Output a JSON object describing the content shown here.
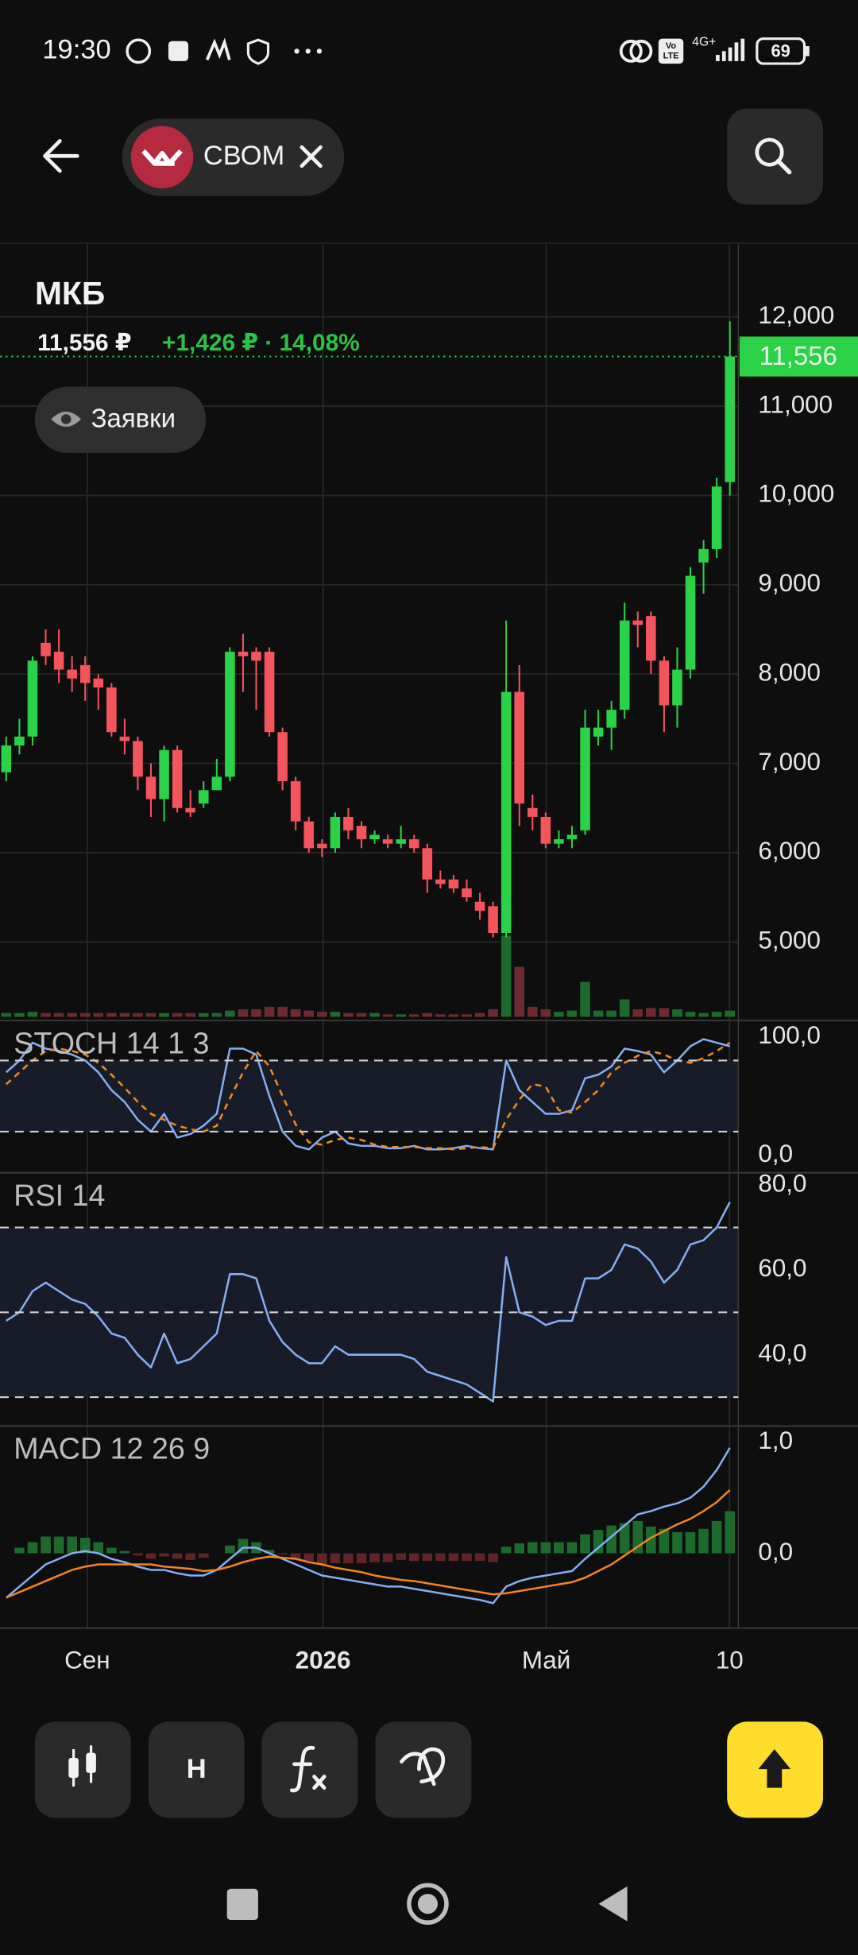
{
  "status_bar": {
    "time": "19:30",
    "volte_top": "Vo",
    "volte_bottom": "LTE",
    "network": "4G+",
    "battery": "69"
  },
  "header": {
    "ticker_chip": "СВОМ"
  },
  "toolbar": {
    "chart_type_text": "H"
  },
  "chart_data": [
    {
      "type": "candlestick",
      "title": "МКБ",
      "price": "11,556 ₽",
      "change": "+1,426 ₽ · 14,08%",
      "orders_button": "Заявки",
      "open": [
        6900,
        7200,
        7300,
        8350,
        8250,
        8050,
        8100,
        7950,
        7850,
        7300,
        7250,
        6850,
        6600,
        7150,
        6500,
        6550,
        6700,
        6850,
        8250,
        8250,
        8250,
        7350,
        6800,
        6350,
        6100,
        6050,
        6400,
        6300,
        6150,
        6150,
        6100,
        6150,
        6050,
        5700,
        5700,
        5600,
        5450,
        5400,
        5100,
        7800,
        6500,
        6400,
        6100,
        6150,
        6250,
        7300,
        7400,
        7600,
        8600,
        8650,
        8150,
        7650,
        8050,
        9250,
        9400,
        10150
      ],
      "high": [
        7300,
        7500,
        8200,
        8500,
        8500,
        8200,
        8200,
        8000,
        7900,
        7500,
        7300,
        7000,
        7200,
        7200,
        6700,
        6800,
        7050,
        8300,
        8450,
        8300,
        8300,
        7400,
        6850,
        6400,
        6150,
        6450,
        6500,
        6350,
        6250,
        6200,
        6300,
        6200,
        6100,
        5800,
        5750,
        5700,
        5550,
        5450,
        8600,
        8100,
        6650,
        6450,
        6250,
        6300,
        7600,
        7600,
        7700,
        8800,
        8700,
        8700,
        8200,
        8300,
        9200,
        9500,
        10200,
        11950
      ],
      "low": [
        6800,
        7100,
        7200,
        8100,
        7900,
        7800,
        7700,
        7600,
        7300,
        7100,
        6700,
        6400,
        6350,
        6450,
        6400,
        6500,
        6700,
        6800,
        7800,
        7600,
        7300,
        6700,
        6250,
        6000,
        5950,
        6000,
        6150,
        6050,
        6100,
        6050,
        6050,
        6000,
        5550,
        5600,
        5550,
        5450,
        5250,
        5050,
        5050,
        6300,
        6250,
        6050,
        6050,
        6050,
        6200,
        7200,
        7150,
        7500,
        8300,
        8000,
        7350,
        7400,
        7950,
        8900,
        9300,
        10000
      ],
      "close": [
        7200,
        7300,
        8150,
        8200,
        8050,
        7950,
        7900,
        7850,
        7350,
        7250,
        6850,
        6600,
        7150,
        6500,
        6450,
        6700,
        6850,
        8250,
        8200,
        8150,
        7350,
        6800,
        6350,
        6050,
        6050,
        6400,
        6250,
        6150,
        6200,
        6100,
        6150,
        6050,
        5700,
        5650,
        5600,
        5500,
        5350,
        5100,
        7800,
        6550,
        6400,
        6100,
        6150,
        6200,
        7400,
        7400,
        7600,
        8600,
        8550,
        8150,
        7650,
        8050,
        9100,
        9400,
        10100,
        11556
      ],
      "volume": [
        3,
        3,
        4,
        3,
        3,
        3,
        3,
        3,
        3,
        3,
        3,
        3,
        3,
        3,
        3,
        3,
        3,
        5,
        6,
        6,
        8,
        8,
        6,
        5,
        4,
        4,
        3,
        3,
        3,
        2,
        2,
        2,
        3,
        2,
        2,
        2,
        3,
        6,
        65,
        40,
        8,
        6,
        4,
        5,
        28,
        5,
        5,
        14,
        6,
        7,
        7,
        6,
        4,
        3,
        4,
        5
      ],
      "up_color": "#2bd146",
      "down_color": "#f4545c",
      "volume_up_color": "#1d6b2c",
      "volume_down_color": "#6e2a30",
      "last_price": {
        "value": 11556,
        "label": "11,556"
      },
      "ylim": [
        4120,
        12810
      ],
      "yticks": [
        {
          "value": 12000,
          "label": "12,000"
        },
        {
          "value": 11000,
          "label": "11,000"
        },
        {
          "value": 10000,
          "label": "10,000"
        },
        {
          "value": 9000,
          "label": "9,000"
        },
        {
          "value": 8000,
          "label": "8,000"
        },
        {
          "value": 7000,
          "label": "7,000"
        },
        {
          "value": 6000,
          "label": "6,000"
        },
        {
          "value": 5000,
          "label": "5,000"
        }
      ],
      "x_labels": [
        "Сен",
        "2026",
        "Май",
        "10"
      ],
      "grid": true
    },
    {
      "type": "line",
      "title": "STOCH 14 1 3",
      "series": [
        {
          "color": "#86aef5",
          "style": "solid",
          "values": [
            70,
            80,
            95,
            90,
            88,
            85,
            80,
            70,
            55,
            45,
            30,
            20,
            35,
            15,
            18,
            25,
            35,
            90,
            90,
            85,
            50,
            20,
            8,
            5,
            15,
            20,
            10,
            8,
            8,
            6,
            6,
            8,
            5,
            5,
            6,
            8,
            6,
            5,
            80,
            55,
            45,
            35,
            35,
            38,
            65,
            68,
            75,
            90,
            88,
            85,
            70,
            80,
            92,
            98,
            95,
            92
          ]
        },
        {
          "color": "#f08a24",
          "style": "dashed",
          "values": [
            60,
            70,
            80,
            88,
            90,
            88,
            85,
            78,
            68,
            57,
            45,
            35,
            30,
            25,
            22,
            20,
            25,
            48,
            70,
            88,
            75,
            50,
            26,
            11,
            9,
            13,
            15,
            13,
            9,
            7,
            7,
            7,
            6,
            6,
            5,
            6,
            7,
            6,
            30,
            47,
            60,
            58,
            38,
            36,
            45,
            55,
            70,
            78,
            84,
            88,
            85,
            80,
            78,
            82,
            88,
            95
          ]
        }
      ],
      "levels": [
        80,
        20
      ],
      "ylim": [
        -14.7,
        113.7
      ],
      "yticks": [
        {
          "value": 100,
          "label": "100,0"
        },
        {
          "value": 0,
          "label": "0,0"
        }
      ]
    },
    {
      "type": "line",
      "title": "RSI 14",
      "series": [
        {
          "color": "#86aef5",
          "style": "solid",
          "values": [
            48,
            50,
            55,
            57,
            55,
            53,
            52,
            49,
            45,
            44,
            40,
            37,
            45,
            38,
            39,
            42,
            45,
            59,
            59,
            58,
            48,
            43,
            40,
            38,
            38,
            42,
            40,
            40,
            40,
            40,
            40,
            39,
            36,
            35,
            34,
            33,
            31,
            29,
            63,
            50,
            49,
            47,
            48,
            48,
            58,
            58,
            60,
            66,
            65,
            62,
            57,
            60,
            66,
            67,
            70,
            76
          ]
        }
      ],
      "levels": [
        70,
        50,
        30
      ],
      "ylim": [
        23.2,
        82.9
      ],
      "yticks": [
        {
          "value": 80,
          "label": "80,0"
        },
        {
          "value": 60,
          "label": "60,0"
        },
        {
          "value": 40,
          "label": "40,0"
        }
      ]
    },
    {
      "type": "macd",
      "title": "MACD 12 26 9",
      "series": [
        {
          "color": "#86aef5",
          "style": "solid",
          "values": [
            -0.4,
            -0.3,
            -0.2,
            -0.1,
            -0.05,
            0,
            0.02,
            0,
            -0.05,
            -0.08,
            -0.12,
            -0.15,
            -0.15,
            -0.18,
            -0.2,
            -0.2,
            -0.15,
            -0.05,
            0.05,
            0.05,
            0,
            -0.05,
            -0.1,
            -0.15,
            -0.2,
            -0.22,
            -0.24,
            -0.26,
            -0.28,
            -0.3,
            -0.3,
            -0.32,
            -0.34,
            -0.36,
            -0.38,
            -0.4,
            -0.42,
            -0.45,
            -0.3,
            -0.25,
            -0.22,
            -0.2,
            -0.18,
            -0.16,
            -0.05,
            0.05,
            0.15,
            0.25,
            0.35,
            0.38,
            0.42,
            0.45,
            0.5,
            0.6,
            0.75,
            0.95
          ]
        },
        {
          "color": "#f5841f",
          "style": "solid",
          "values": [
            -0.4,
            -0.35,
            -0.3,
            -0.25,
            -0.2,
            -0.15,
            -0.12,
            -0.1,
            -0.1,
            -0.1,
            -0.1,
            -0.1,
            -0.12,
            -0.13,
            -0.14,
            -0.16,
            -0.15,
            -0.12,
            -0.08,
            -0.05,
            -0.03,
            -0.04,
            -0.05,
            -0.08,
            -0.1,
            -0.13,
            -0.15,
            -0.17,
            -0.2,
            -0.22,
            -0.24,
            -0.25,
            -0.27,
            -0.29,
            -0.31,
            -0.33,
            -0.35,
            -0.37,
            -0.36,
            -0.34,
            -0.32,
            -0.3,
            -0.28,
            -0.26,
            -0.22,
            -0.16,
            -0.1,
            -0.02,
            0.06,
            0.14,
            0.2,
            0.26,
            0.31,
            0.38,
            0.46,
            0.57
          ]
        }
      ],
      "histogram": [
        0,
        0.05,
        0.1,
        0.15,
        0.15,
        0.15,
        0.14,
        0.1,
        0.05,
        0.02,
        -0.02,
        -0.05,
        -0.03,
        -0.05,
        -0.06,
        -0.04,
        0,
        0.07,
        0.13,
        0.1,
        0.03,
        -0.01,
        -0.05,
        -0.07,
        -0.1,
        -0.09,
        -0.09,
        -0.09,
        -0.08,
        -0.08,
        -0.06,
        -0.07,
        -0.07,
        -0.07,
        -0.07,
        -0.07,
        -0.07,
        -0.08,
        0.06,
        0.09,
        0.1,
        0.1,
        0.1,
        0.1,
        0.17,
        0.21,
        0.25,
        0.27,
        0.29,
        0.24,
        0.22,
        0.19,
        0.19,
        0.22,
        0.29,
        0.38
      ],
      "histogram_up_color": "#1d6b2c",
      "histogram_down_color": "#5e2429",
      "ylim": [
        -0.674,
        1.146
      ],
      "yticks": [
        {
          "value": 1,
          "label": "1,0"
        },
        {
          "value": 0,
          "label": "0,0"
        }
      ]
    }
  ]
}
